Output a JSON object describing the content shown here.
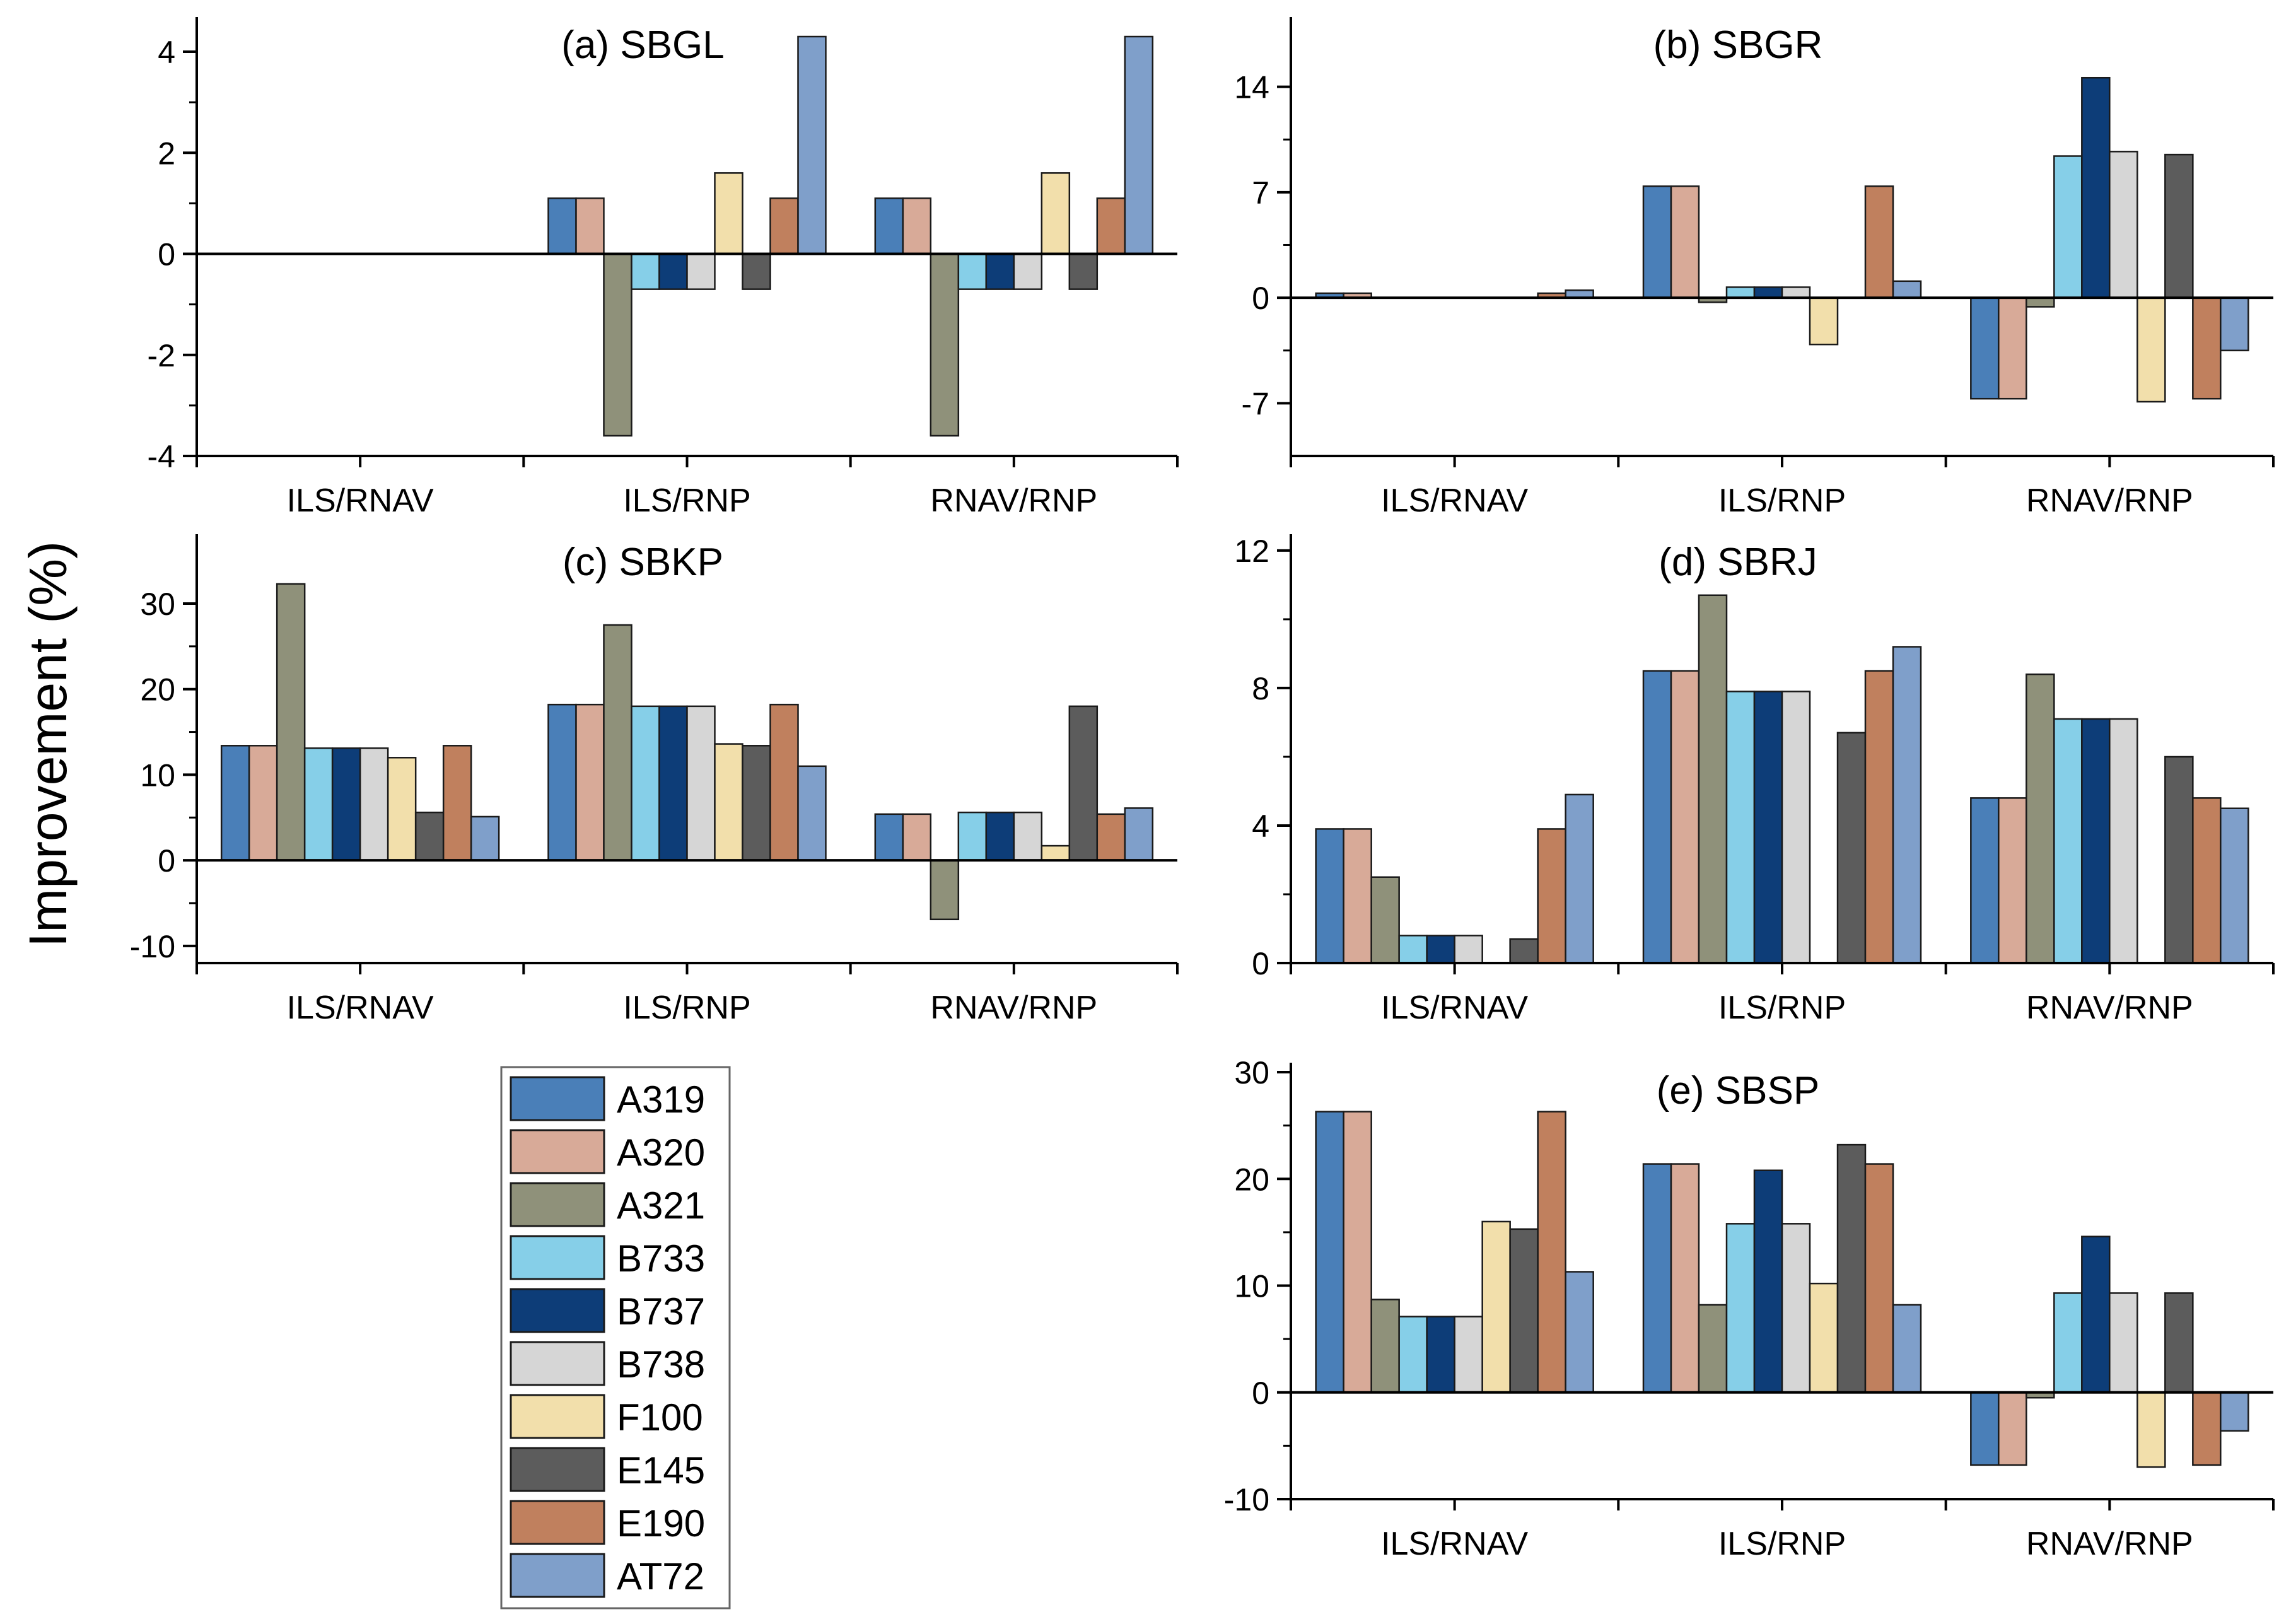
{
  "ylabel": "Improvement (%)",
  "legend": {
    "position": "bottom-left",
    "items": [
      {
        "name": "A319",
        "color": "#4a7fb8"
      },
      {
        "name": "A320",
        "color": "#d8aa98"
      },
      {
        "name": "A321",
        "color": "#8f917a"
      },
      {
        "name": "B733",
        "color": "#86cfe8"
      },
      {
        "name": "B737",
        "color": "#0d3d78"
      },
      {
        "name": "B738",
        "color": "#d6d6d6"
      },
      {
        "name": "F100",
        "color": "#f2dfab"
      },
      {
        "name": "E145",
        "color": "#5c5c5c"
      },
      {
        "name": "E190",
        "color": "#c0805e"
      },
      {
        "name": "AT72",
        "color": "#7f9fca"
      }
    ]
  },
  "chart_data": [
    {
      "id": "a",
      "type": "bar",
      "title": "(a) SBGL",
      "categories": [
        "ILS/RNAV",
        "ILS/RNP",
        "RNAV/RNP"
      ],
      "ylim": [
        -4,
        4.5
      ],
      "yticks": [
        -4,
        -2,
        0,
        2,
        4
      ],
      "ytick_labels": [
        "-4",
        "-2",
        "0",
        "2",
        "4"
      ],
      "series": [
        {
          "name": "A319",
          "values": [
            0,
            1.1,
            1.1
          ]
        },
        {
          "name": "A320",
          "values": [
            0,
            1.1,
            1.1
          ]
        },
        {
          "name": "A321",
          "values": [
            0,
            -3.6,
            -3.6
          ]
        },
        {
          "name": "B733",
          "values": [
            0,
            -0.7,
            -0.7
          ]
        },
        {
          "name": "B737",
          "values": [
            0,
            -0.7,
            -0.7
          ]
        },
        {
          "name": "B738",
          "values": [
            0,
            -0.7,
            -0.7
          ]
        },
        {
          "name": "F100",
          "values": [
            0,
            1.6,
            1.6
          ]
        },
        {
          "name": "E145",
          "values": [
            0,
            -0.7,
            -0.7
          ]
        },
        {
          "name": "E190",
          "values": [
            0,
            1.1,
            1.1
          ]
        },
        {
          "name": "AT72",
          "values": [
            0,
            4.3,
            4.3
          ]
        }
      ]
    },
    {
      "id": "b",
      "type": "bar",
      "title": "(b) SBGR",
      "categories": [
        "ILS/RNAV",
        "ILS/RNP",
        "RNAV/RNP"
      ],
      "ylim": [
        -10.5,
        18
      ],
      "yticks": [
        -7,
        0,
        7,
        14
      ],
      "ytick_labels": [
        "-7",
        "0",
        "7",
        "14"
      ],
      "series": [
        {
          "name": "A319",
          "values": [
            0.3,
            7.4,
            -6.7
          ]
        },
        {
          "name": "A320",
          "values": [
            0.3,
            7.4,
            -6.7
          ]
        },
        {
          "name": "A321",
          "values": [
            0,
            -0.3,
            -0.6
          ]
        },
        {
          "name": "B733",
          "values": [
            0,
            0.7,
            9.4
          ]
        },
        {
          "name": "B737",
          "values": [
            0,
            0.7,
            14.6
          ]
        },
        {
          "name": "B738",
          "values": [
            0,
            0.7,
            9.7
          ]
        },
        {
          "name": "F100",
          "values": [
            0,
            -3.1,
            -6.9
          ]
        },
        {
          "name": "E145",
          "values": [
            0,
            0,
            9.5
          ]
        },
        {
          "name": "E190",
          "values": [
            0.3,
            7.4,
            -6.7
          ]
        },
        {
          "name": "AT72",
          "values": [
            0.5,
            1.1,
            -3.5
          ]
        }
      ]
    },
    {
      "id": "c",
      "type": "bar",
      "title": "(c) SBKP",
      "categories": [
        "ILS/RNAV",
        "ILS/RNP",
        "RNAV/RNP"
      ],
      "ylim": [
        -12,
        37
      ],
      "yticks": [
        -10,
        0,
        10,
        20,
        30
      ],
      "ytick_labels": [
        "-10",
        "0",
        "10",
        "20",
        "30"
      ],
      "series": [
        {
          "name": "A319",
          "values": [
            13.4,
            18.2,
            5.4
          ]
        },
        {
          "name": "A320",
          "values": [
            13.4,
            18.2,
            5.4
          ]
        },
        {
          "name": "A321",
          "values": [
            32.3,
            27.5,
            -6.9
          ]
        },
        {
          "name": "B733",
          "values": [
            13.1,
            18.0,
            5.6
          ]
        },
        {
          "name": "B737",
          "values": [
            13.1,
            18.0,
            5.6
          ]
        },
        {
          "name": "B738",
          "values": [
            13.1,
            18.0,
            5.6
          ]
        },
        {
          "name": "F100",
          "values": [
            12.0,
            13.6,
            1.7
          ]
        },
        {
          "name": "E145",
          "values": [
            5.6,
            13.4,
            18.0
          ]
        },
        {
          "name": "E190",
          "values": [
            13.4,
            18.2,
            5.4
          ]
        },
        {
          "name": "AT72",
          "values": [
            5.1,
            11.0,
            6.1
          ]
        }
      ]
    },
    {
      "id": "d",
      "type": "bar",
      "title": "(d) SBRJ",
      "categories": [
        "ILS/RNAV",
        "ILS/RNP",
        "RNAV/RNP"
      ],
      "ylim": [
        0,
        12.2
      ],
      "yticks": [
        0,
        4,
        8,
        12
      ],
      "ytick_labels": [
        "0",
        "4",
        "8",
        "12"
      ],
      "series": [
        {
          "name": "A319",
          "values": [
            3.9,
            8.5,
            4.8
          ]
        },
        {
          "name": "A320",
          "values": [
            3.9,
            8.5,
            4.8
          ]
        },
        {
          "name": "A321",
          "values": [
            2.5,
            10.7,
            8.4
          ]
        },
        {
          "name": "B733",
          "values": [
            0.8,
            7.9,
            7.1
          ]
        },
        {
          "name": "B737",
          "values": [
            0.8,
            7.9,
            7.1
          ]
        },
        {
          "name": "B738",
          "values": [
            0.8,
            7.9,
            7.1
          ]
        },
        {
          "name": "F100",
          "values": [
            0,
            0,
            0
          ]
        },
        {
          "name": "E145",
          "values": [
            0.7,
            6.7,
            6.0
          ]
        },
        {
          "name": "E190",
          "values": [
            3.9,
            8.5,
            4.8
          ]
        },
        {
          "name": "AT72",
          "values": [
            4.9,
            9.2,
            4.5
          ]
        }
      ]
    },
    {
      "id": "e",
      "type": "bar",
      "title": "(e) SBSP",
      "categories": [
        "ILS/RNAV",
        "ILS/RNP",
        "RNAV/RNP"
      ],
      "ylim": [
        -10,
        30
      ],
      "yticks": [
        -10,
        0,
        10,
        20,
        30
      ],
      "ytick_labels": [
        "-10",
        "0",
        "10",
        "20",
        "30"
      ],
      "series": [
        {
          "name": "A319",
          "values": [
            26.3,
            21.4,
            -6.8
          ]
        },
        {
          "name": "A320",
          "values": [
            26.3,
            21.4,
            -6.8
          ]
        },
        {
          "name": "A321",
          "values": [
            8.7,
            8.2,
            -0.5
          ]
        },
        {
          "name": "B733",
          "values": [
            7.1,
            15.8,
            9.3
          ]
        },
        {
          "name": "B737",
          "values": [
            7.1,
            20.8,
            14.6
          ]
        },
        {
          "name": "B738",
          "values": [
            7.1,
            15.8,
            9.3
          ]
        },
        {
          "name": "F100",
          "values": [
            16.0,
            10.2,
            -7.0
          ]
        },
        {
          "name": "E145",
          "values": [
            15.3,
            23.2,
            9.3
          ]
        },
        {
          "name": "E190",
          "values": [
            26.3,
            21.4,
            -6.8
          ]
        },
        {
          "name": "AT72",
          "values": [
            11.3,
            8.2,
            -3.6
          ]
        }
      ]
    }
  ]
}
